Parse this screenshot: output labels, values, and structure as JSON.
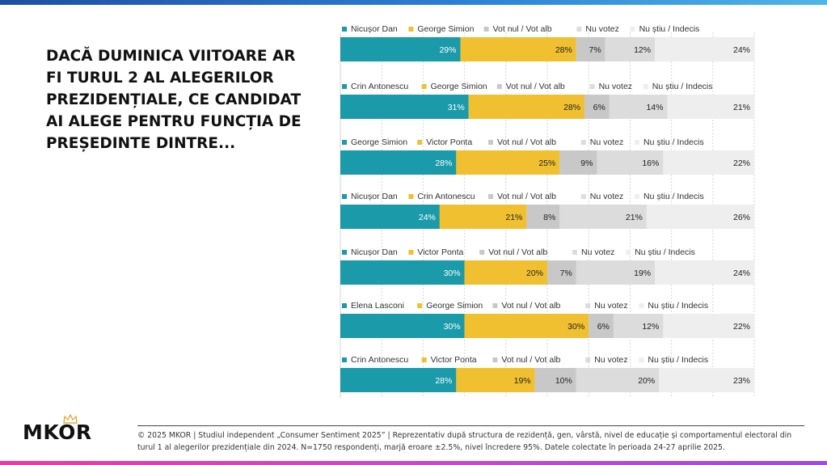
{
  "question": "DACĂ DUMINICA VIITOARE AR FI TURUL 2 AL ALEGERILOR PREZIDENȚIALE, CE CANDIDAT AI ALEGE PENTRU FUNCȚIA DE PREȘEDINTE DINTRE...",
  "logo": "MKOR",
  "footer": "© 2025 MKOR | Studiul independent „Consumer Sentiment 2025” | Reprezentativ după structura de rezidență, gen, vârstă, nivel de educație și comportamentul electoral din turul 1 al alegerilor prezidențiale din 2024. N=1750 respondenți, marjă eroare ±2.5%, nivel încredere 95%. Datele colectate în perioada 24-27 aprilie 2025.",
  "colors": {
    "candidate1": "#1b9aaa",
    "candidate2": "#f0c030",
    "vot_nul": "#c8c8c8",
    "nu_votez": "#dcdcdc",
    "nu_stiu": "#eeeeee",
    "top_bar": "#2a7fd6",
    "bottom_bar": "#c050c0"
  },
  "chart_data": {
    "type": "bar",
    "orientation": "horizontal-stacked-100",
    "xlim": [
      0,
      100
    ],
    "grid": true,
    "legend_placement": "above each bar",
    "value_suffix": "%",
    "pairs": [
      {
        "series": [
          {
            "name": "Nicușor Dan",
            "value": 29
          },
          {
            "name": "George Simion",
            "value": 28
          },
          {
            "name": "Vot nul / Vot alb",
            "value": 7
          },
          {
            "name": "Nu votez",
            "value": 12
          },
          {
            "name": "Nu știu / Indecis",
            "value": 24
          }
        ]
      },
      {
        "series": [
          {
            "name": "Crin Antonescu",
            "value": 31
          },
          {
            "name": "George Simion",
            "value": 28
          },
          {
            "name": "Vot nul / Vot alb",
            "value": 6
          },
          {
            "name": "Nu votez",
            "value": 14
          },
          {
            "name": "Nu știu / Indecis",
            "value": 21
          }
        ]
      },
      {
        "series": [
          {
            "name": "George Simion",
            "value": 28
          },
          {
            "name": "Victor Ponta",
            "value": 25
          },
          {
            "name": "Vot nul / Vot alb",
            "value": 9
          },
          {
            "name": "Nu votez",
            "value": 16
          },
          {
            "name": "Nu știu / Indecis",
            "value": 22
          }
        ]
      },
      {
        "series": [
          {
            "name": "Nicușor Dan",
            "value": 24
          },
          {
            "name": "Crin Antonescu",
            "value": 21
          },
          {
            "name": "Vot nul / Vot alb",
            "value": 8
          },
          {
            "name": "Nu votez",
            "value": 21
          },
          {
            "name": "Nu știu / Indecis",
            "value": 26
          }
        ]
      },
      {
        "series": [
          {
            "name": "Nicușor Dan",
            "value": 30
          },
          {
            "name": "Victor Ponta",
            "value": 20
          },
          {
            "name": "Vot nul / Vot alb",
            "value": 7
          },
          {
            "name": "Nu votez",
            "value": 19
          },
          {
            "name": "Nu știu / Indecis",
            "value": 24
          }
        ]
      },
      {
        "series": [
          {
            "name": "Elena Lasconi",
            "value": 30
          },
          {
            "name": "George Simion",
            "value": 30
          },
          {
            "name": "Vot nul / Vot alb",
            "value": 6
          },
          {
            "name": "Nu votez",
            "value": 12
          },
          {
            "name": "Nu știu / Indecis",
            "value": 22
          }
        ]
      },
      {
        "series": [
          {
            "name": "Crin Antonescu",
            "value": 28
          },
          {
            "name": "Victor Ponta",
            "value": 19
          },
          {
            "name": "Vot nul / Vot alb",
            "value": 10
          },
          {
            "name": "Nu votez",
            "value": 20
          },
          {
            "name": "Nu știu / Indecis",
            "value": 23
          }
        ]
      }
    ]
  }
}
